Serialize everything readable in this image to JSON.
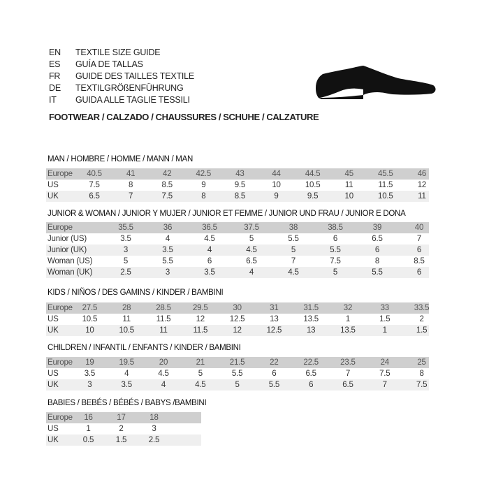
{
  "header": {
    "languages": [
      {
        "code": "EN",
        "text": "TEXTILE SIZE GUIDE"
      },
      {
        "code": "ES",
        "text": "GUÍA DE TALLAS"
      },
      {
        "code": "FR",
        "text": "GUIDE DES TAILLES TEXTILE"
      },
      {
        "code": "DE",
        "text": "TEXTILGRÖßENFÜHRUNG"
      },
      {
        "code": "IT",
        "text": "GUIDA ALLE TAGLIE TESSILI"
      }
    ],
    "footwear": "FOOTWEAR / CALZADO / CHAUSSURES / SCHUHE / CALZATURE",
    "icon": "shoe-icon"
  },
  "sections": [
    {
      "title": "MAN / HOMBRE / HOMME / MANN / MAN",
      "rows": [
        {
          "label": "Europe",
          "values": [
            "40.5",
            "41",
            "42",
            "42.5",
            "43",
            "44",
            "44.5",
            "45",
            "45.5",
            "46"
          ]
        },
        {
          "label": "US",
          "values": [
            "7.5",
            "8",
            "8.5",
            "9",
            "9.5",
            "10",
            "10.5",
            "11",
            "11.5",
            "12"
          ]
        },
        {
          "label": "UK",
          "values": [
            "6.5",
            "7",
            "7.5",
            "8",
            "8.5",
            "9",
            "9.5",
            "10",
            "10.5",
            "11"
          ]
        }
      ]
    },
    {
      "title": "JUNIOR & WOMAN / JUNIOR Y MUJER / JUNIOR ET FEMME / JUNIOR UND FRAU / JUNIOR E DONA",
      "rows": [
        {
          "label": "Europe",
          "values": [
            "35.5",
            "36",
            "36.5",
            "37.5",
            "38",
            "38.5",
            "39",
            "40"
          ]
        },
        {
          "label": "Junior (US)",
          "values": [
            "3.5",
            "4",
            "4.5",
            "5",
            "5.5",
            "6",
            "6.5",
            "7"
          ]
        },
        {
          "label": "Junior (UK)",
          "values": [
            "3",
            "3.5",
            "4",
            "4.5",
            "5",
            "5.5",
            "6",
            "6"
          ]
        },
        {
          "label": "Woman (US)",
          "values": [
            "5",
            "5.5",
            "6",
            "6.5",
            "7",
            "7.5",
            "8",
            "8.5"
          ]
        },
        {
          "label": "Woman (UK)",
          "values": [
            "2.5",
            "3",
            "3.5",
            "4",
            "4.5",
            "5",
            "5.5",
            "6"
          ]
        }
      ]
    },
    {
      "title": "KIDS / NIÑOS / DES GAMINS / KINDER / BAMBINI",
      "rows": [
        {
          "label": "Europe",
          "values": [
            "27.5",
            "28",
            "28.5",
            "29.5",
            "30",
            "31",
            "31.5",
            "32",
            "33",
            "33.5"
          ]
        },
        {
          "label": "US",
          "values": [
            "10.5",
            "11",
            "11.5",
            "12",
            "12.5",
            "13",
            "13.5",
            "1",
            "1.5",
            "2"
          ]
        },
        {
          "label": "UK",
          "values": [
            "10",
            "10.5",
            "11",
            "11.5",
            "12",
            "12.5",
            "13",
            "13.5",
            "1",
            "1.5"
          ]
        }
      ]
    },
    {
      "title": "CHILDREN / INFANTIL / ENFANTS / KINDER / BAMBINI",
      "rows": [
        {
          "label": "Europe",
          "values": [
            "19",
            "19.5",
            "20",
            "21",
            "21.5",
            "22",
            "22.5",
            "23.5",
            "24",
            "25"
          ]
        },
        {
          "label": "US",
          "values": [
            "3.5",
            "4",
            "4.5",
            "5",
            "5.5",
            "6",
            "6.5",
            "7",
            "7.5",
            "8"
          ]
        },
        {
          "label": "UK",
          "values": [
            "3",
            "3.5",
            "4",
            "4.5",
            "5",
            "5.5",
            "6",
            "6.5",
            "7",
            "7.5"
          ]
        }
      ]
    },
    {
      "title": "BABIES  / BEBÉS / BÉBÉS / BABYS /BAMBINI",
      "rows": [
        {
          "label": "Europe",
          "values": [
            "16",
            "17",
            "18"
          ]
        },
        {
          "label": "US",
          "values": [
            "1",
            "2",
            "3"
          ]
        },
        {
          "label": "UK",
          "values": [
            "0.5",
            "1.5",
            "2.5"
          ]
        }
      ]
    }
  ],
  "colors": {
    "header_row": "#cfcfcf",
    "alt_row": "#efefef",
    "shoe": "#111111"
  }
}
